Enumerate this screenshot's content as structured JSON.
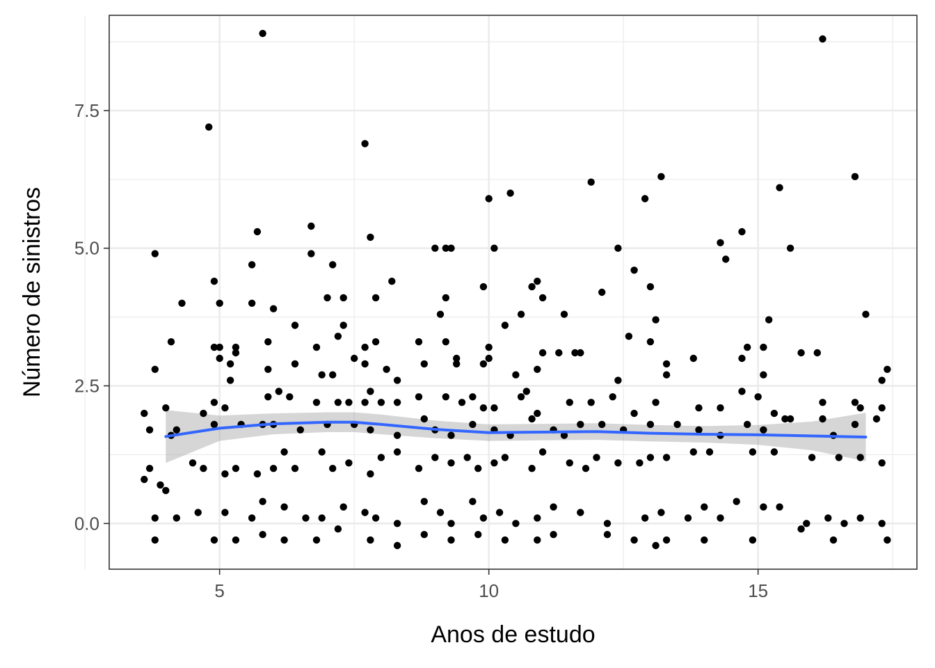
{
  "chart_data": {
    "type": "scatter",
    "title": "",
    "xlabel": "Anos de estudo",
    "ylabel": "Número de sinistros",
    "xlim": [
      2.95,
      17.95
    ],
    "ylim": [
      -0.83,
      9.23
    ],
    "x_ticks": [
      5,
      10,
      15
    ],
    "x_tick_labels": [
      "5",
      "10",
      "15"
    ],
    "x_minor_ticks": [
      2.5,
      7.5,
      12.5,
      17.5
    ],
    "y_ticks": [
      0,
      2.5,
      5,
      7.5
    ],
    "y_tick_labels": [
      "0.0",
      "2.5",
      "5.0",
      "7.5"
    ],
    "y_minor_ticks": [
      1.25,
      3.75,
      6.25,
      8.75
    ],
    "grid": true,
    "legend": "none",
    "colors": {
      "points": "#000000",
      "smooth_line": "#3366ff",
      "ribbon": "#999999",
      "grid": "#ebebeb",
      "panel_border": "#333333",
      "tick_text": "#4d4d4d"
    },
    "points": [
      [
        4.8,
        7.2
      ],
      [
        5.8,
        8.9
      ],
      [
        7.7,
        6.9
      ],
      [
        16.2,
        8.8
      ],
      [
        11.9,
        6.2
      ],
      [
        13.2,
        6.3
      ],
      [
        10.0,
        5.9
      ],
      [
        10.4,
        6.0
      ],
      [
        16.8,
        6.3
      ],
      [
        12.9,
        5.9
      ],
      [
        15.4,
        6.1
      ],
      [
        14.7,
        5.3
      ],
      [
        14.3,
        5.1
      ],
      [
        15.6,
        5.0
      ],
      [
        12.7,
        4.6
      ],
      [
        13.0,
        4.3
      ],
      [
        14.4,
        4.8
      ],
      [
        12.4,
        5.0
      ],
      [
        10.1,
        5.0
      ],
      [
        9.2,
        5.0
      ],
      [
        9.0,
        5.0
      ],
      [
        9.3,
        5.0
      ],
      [
        7.8,
        5.2
      ],
      [
        6.7,
        5.4
      ],
      [
        5.7,
        5.3
      ],
      [
        5.6,
        4.7
      ],
      [
        6.7,
        4.9
      ],
      [
        7.1,
        4.7
      ],
      [
        3.8,
        4.9
      ],
      [
        4.9,
        4.4
      ],
      [
        4.3,
        4.0
      ],
      [
        5.0,
        4.0
      ],
      [
        5.6,
        4.0
      ],
      [
        6.0,
        3.9
      ],
      [
        7.3,
        4.1
      ],
      [
        7.0,
        4.1
      ],
      [
        7.9,
        4.1
      ],
      [
        8.2,
        4.4
      ],
      [
        9.9,
        4.3
      ],
      [
        10.8,
        4.3
      ],
      [
        10.9,
        4.4
      ],
      [
        11.0,
        4.1
      ],
      [
        11.4,
        3.8
      ],
      [
        12.1,
        4.2
      ],
      [
        9.2,
        4.1
      ],
      [
        9.1,
        3.8
      ],
      [
        6.4,
        3.6
      ],
      [
        7.3,
        3.6
      ],
      [
        4.1,
        3.3
      ],
      [
        4.9,
        3.2
      ],
      [
        5.0,
        3.2
      ],
      [
        5.3,
        3.1
      ],
      [
        5.3,
        3.2
      ],
      [
        5.9,
        3.3
      ],
      [
        6.8,
        3.2
      ],
      [
        7.2,
        3.4
      ],
      [
        7.5,
        3.0
      ],
      [
        7.7,
        3.2
      ],
      [
        7.9,
        3.3
      ],
      [
        8.7,
        3.3
      ],
      [
        9.2,
        3.3
      ],
      [
        9.4,
        2.9
      ],
      [
        10.0,
        3.2
      ],
      [
        10.3,
        3.6
      ],
      [
        10.6,
        3.8
      ],
      [
        11.0,
        3.1
      ],
      [
        11.3,
        3.1
      ],
      [
        11.6,
        3.1
      ],
      [
        12.6,
        3.4
      ],
      [
        13.1,
        3.7
      ],
      [
        13.0,
        3.3
      ],
      [
        13.3,
        2.9
      ],
      [
        13.8,
        3.0
      ],
      [
        14.8,
        3.2
      ],
      [
        15.1,
        3.2
      ],
      [
        15.2,
        3.7
      ],
      [
        15.8,
        3.1
      ],
      [
        16.1,
        3.1
      ],
      [
        17.0,
        3.8
      ],
      [
        17.4,
        2.8
      ],
      [
        3.8,
        2.8
      ],
      [
        5.0,
        3.0
      ],
      [
        5.2,
        2.9
      ],
      [
        5.2,
        2.6
      ],
      [
        5.9,
        2.8
      ],
      [
        6.4,
        2.9
      ],
      [
        6.9,
        2.7
      ],
      [
        7.1,
        2.7
      ],
      [
        7.7,
        2.9
      ],
      [
        8.1,
        2.8
      ],
      [
        8.3,
        2.6
      ],
      [
        8.8,
        2.9
      ],
      [
        9.4,
        3.0
      ],
      [
        9.9,
        2.9
      ],
      [
        10.0,
        3.0
      ],
      [
        10.5,
        2.7
      ],
      [
        10.9,
        2.8
      ],
      [
        11.7,
        3.1
      ],
      [
        12.4,
        2.6
      ],
      [
        13.3,
        2.7
      ],
      [
        14.7,
        3.0
      ],
      [
        15.1,
        2.7
      ],
      [
        15.3,
        2.0
      ],
      [
        15.5,
        1.9
      ],
      [
        16.2,
        2.2
      ],
      [
        16.8,
        2.2
      ],
      [
        16.9,
        2.1
      ],
      [
        17.3,
        2.1
      ],
      [
        17.3,
        2.6
      ],
      [
        3.6,
        2.0
      ],
      [
        4.0,
        2.1
      ],
      [
        4.7,
        2.0
      ],
      [
        4.9,
        2.2
      ],
      [
        5.1,
        2.1
      ],
      [
        5.9,
        2.3
      ],
      [
        6.3,
        2.3
      ],
      [
        6.1,
        2.4
      ],
      [
        6.8,
        2.2
      ],
      [
        7.2,
        2.2
      ],
      [
        7.4,
        2.2
      ],
      [
        7.7,
        2.2
      ],
      [
        7.8,
        2.4
      ],
      [
        8.0,
        2.2
      ],
      [
        8.3,
        2.2
      ],
      [
        8.7,
        2.3
      ],
      [
        9.2,
        2.3
      ],
      [
        9.5,
        2.2
      ],
      [
        9.7,
        2.3
      ],
      [
        9.9,
        2.1
      ],
      [
        10.1,
        2.1
      ],
      [
        10.6,
        2.3
      ],
      [
        10.7,
        2.4
      ],
      [
        10.9,
        2.0
      ],
      [
        11.5,
        2.2
      ],
      [
        11.9,
        2.2
      ],
      [
        12.3,
        2.3
      ],
      [
        12.7,
        2.0
      ],
      [
        13.1,
        2.2
      ],
      [
        13.9,
        2.1
      ],
      [
        14.3,
        2.1
      ],
      [
        14.7,
        2.4
      ],
      [
        15.0,
        2.3
      ],
      [
        3.7,
        1.7
      ],
      [
        4.1,
        1.6
      ],
      [
        4.2,
        1.7
      ],
      [
        4.9,
        1.8
      ],
      [
        5.4,
        1.8
      ],
      [
        5.8,
        1.8
      ],
      [
        6.0,
        1.8
      ],
      [
        6.5,
        1.7
      ],
      [
        7.0,
        1.8
      ],
      [
        7.5,
        1.8
      ],
      [
        7.8,
        1.7
      ],
      [
        8.3,
        1.6
      ],
      [
        8.8,
        1.9
      ],
      [
        9.0,
        1.7
      ],
      [
        9.3,
        1.6
      ],
      [
        9.7,
        1.8
      ],
      [
        10.1,
        1.7
      ],
      [
        10.4,
        1.6
      ],
      [
        10.8,
        1.9
      ],
      [
        11.2,
        1.7
      ],
      [
        11.4,
        1.6
      ],
      [
        11.7,
        1.8
      ],
      [
        12.1,
        1.8
      ],
      [
        12.5,
        1.7
      ],
      [
        13.0,
        1.8
      ],
      [
        13.5,
        1.8
      ],
      [
        13.9,
        1.7
      ],
      [
        14.3,
        1.6
      ],
      [
        14.8,
        1.8
      ],
      [
        15.1,
        1.7
      ],
      [
        15.6,
        1.9
      ],
      [
        16.2,
        1.9
      ],
      [
        16.4,
        1.6
      ],
      [
        16.8,
        1.8
      ],
      [
        17.2,
        1.9
      ],
      [
        3.7,
        1.0
      ],
      [
        3.6,
        0.8
      ],
      [
        3.9,
        0.7
      ],
      [
        4.0,
        0.6
      ],
      [
        4.5,
        1.1
      ],
      [
        4.7,
        1.0
      ],
      [
        5.1,
        0.9
      ],
      [
        5.3,
        1.0
      ],
      [
        5.7,
        0.9
      ],
      [
        6.0,
        1.0
      ],
      [
        6.2,
        1.3
      ],
      [
        6.4,
        1.0
      ],
      [
        6.9,
        1.3
      ],
      [
        7.1,
        1.0
      ],
      [
        7.4,
        1.1
      ],
      [
        7.8,
        0.9
      ],
      [
        8.0,
        1.2
      ],
      [
        8.3,
        1.3
      ],
      [
        8.7,
        1.0
      ],
      [
        9.0,
        1.2
      ],
      [
        9.3,
        1.1
      ],
      [
        9.6,
        1.2
      ],
      [
        9.8,
        1.0
      ],
      [
        10.1,
        1.1
      ],
      [
        10.3,
        1.2
      ],
      [
        10.8,
        1.0
      ],
      [
        11.0,
        1.3
      ],
      [
        11.5,
        1.1
      ],
      [
        11.8,
        1.0
      ],
      [
        12.0,
        1.2
      ],
      [
        12.4,
        1.1
      ],
      [
        12.8,
        1.1
      ],
      [
        13.0,
        1.2
      ],
      [
        13.3,
        1.2
      ],
      [
        13.8,
        1.3
      ],
      [
        14.1,
        1.3
      ],
      [
        14.9,
        1.3
      ],
      [
        15.3,
        1.3
      ],
      [
        16.0,
        1.2
      ],
      [
        16.5,
        1.2
      ],
      [
        16.9,
        1.2
      ],
      [
        17.3,
        1.1
      ],
      [
        3.8,
        0.1
      ],
      [
        4.2,
        0.1
      ],
      [
        4.6,
        0.2
      ],
      [
        5.1,
        0.2
      ],
      [
        5.6,
        0.1
      ],
      [
        5.8,
        0.4
      ],
      [
        6.2,
        0.3
      ],
      [
        6.6,
        0.1
      ],
      [
        6.9,
        0.1
      ],
      [
        7.3,
        0.3
      ],
      [
        7.7,
        0.2
      ],
      [
        7.9,
        0.1
      ],
      [
        8.3,
        0.0
      ],
      [
        8.8,
        0.4
      ],
      [
        9.1,
        0.2
      ],
      [
        9.3,
        0.0
      ],
      [
        9.7,
        0.4
      ],
      [
        9.9,
        0.1
      ],
      [
        10.2,
        0.2
      ],
      [
        10.5,
        0.0
      ],
      [
        10.9,
        0.1
      ],
      [
        11.2,
        0.3
      ],
      [
        11.7,
        0.2
      ],
      [
        12.2,
        0.0
      ],
      [
        12.9,
        0.1
      ],
      [
        13.2,
        0.2
      ],
      [
        13.7,
        0.1
      ],
      [
        14.0,
        0.3
      ],
      [
        14.3,
        0.1
      ],
      [
        14.6,
        0.4
      ],
      [
        15.1,
        0.3
      ],
      [
        15.4,
        0.3
      ],
      [
        15.9,
        0.0
      ],
      [
        16.3,
        0.1
      ],
      [
        16.6,
        0.0
      ],
      [
        16.9,
        0.1
      ],
      [
        17.3,
        0.0
      ],
      [
        3.8,
        -0.3
      ],
      [
        4.9,
        -0.3
      ],
      [
        5.3,
        -0.3
      ],
      [
        5.8,
        -0.2
      ],
      [
        6.2,
        -0.3
      ],
      [
        6.8,
        -0.3
      ],
      [
        7.2,
        -0.1
      ],
      [
        7.8,
        -0.3
      ],
      [
        8.3,
        -0.4
      ],
      [
        8.8,
        -0.2
      ],
      [
        9.3,
        -0.3
      ],
      [
        9.8,
        -0.2
      ],
      [
        10.3,
        -0.3
      ],
      [
        10.9,
        -0.3
      ],
      [
        11.2,
        -0.2
      ],
      [
        12.2,
        -0.2
      ],
      [
        12.7,
        -0.3
      ],
      [
        13.1,
        -0.4
      ],
      [
        13.3,
        -0.3
      ],
      [
        14.0,
        -0.3
      ],
      [
        14.9,
        -0.3
      ],
      [
        15.8,
        -0.1
      ],
      [
        16.4,
        -0.3
      ],
      [
        17.4,
        -0.3
      ]
    ],
    "smooth": {
      "method": "loess",
      "x": [
        4.0,
        5.0,
        6.0,
        7.0,
        7.5,
        8.0,
        9.0,
        10.0,
        11.0,
        12.0,
        13.0,
        14.0,
        15.0,
        16.0,
        17.0
      ],
      "y": [
        1.58,
        1.73,
        1.81,
        1.84,
        1.84,
        1.8,
        1.71,
        1.65,
        1.66,
        1.67,
        1.64,
        1.62,
        1.61,
        1.59,
        1.57
      ],
      "lower": [
        1.1,
        1.5,
        1.62,
        1.66,
        1.66,
        1.62,
        1.55,
        1.5,
        1.51,
        1.52,
        1.49,
        1.47,
        1.43,
        1.33,
        1.13
      ],
      "upper": [
        2.06,
        1.96,
        2.0,
        2.02,
        2.02,
        1.98,
        1.87,
        1.8,
        1.81,
        1.82,
        1.79,
        1.77,
        1.79,
        1.85,
        2.01
      ]
    }
  }
}
